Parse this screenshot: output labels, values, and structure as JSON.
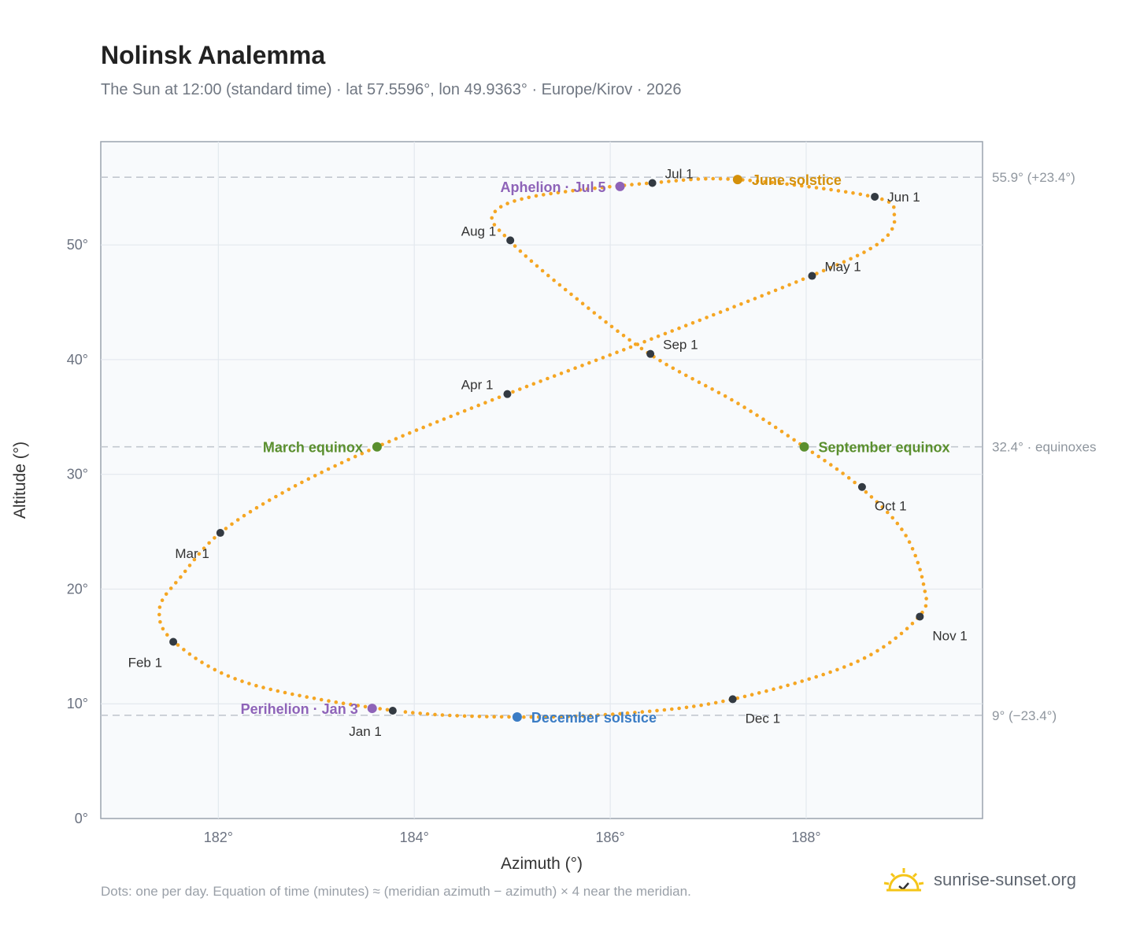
{
  "title": "Nolinsk Analemma",
  "subtitle": "The Sun at 12:00 (standard time) · lat 57.5596°, lon 49.9363° · Europe/Kirov · 2026",
  "footnote": "Dots: one per day. Equation of time (minutes) ≈ (meridian azimuth − azimuth) × 4 near the meridian.",
  "brand": {
    "text": "sunrise-sunset.org",
    "icon": "sun-logo-icon"
  },
  "colors": {
    "curve": "#f5a623",
    "month_marker": "#333a42",
    "equinox": "#5a8f2e",
    "june_solstice": "#d4900a",
    "december_solstice": "#3b7cc4",
    "apsis": "#8e63b8",
    "plot_bg": "#f8fafc",
    "grid": "#e3e8ee",
    "reference_line": "#c2c8cf"
  },
  "chart_data": {
    "type": "scatter",
    "xlabel": "Azimuth (°)",
    "ylabel": "Altitude (°)",
    "xlim": [
      180.8,
      189.8
    ],
    "ylim": [
      0,
      59
    ],
    "x_ticks": [
      182,
      184,
      186,
      188
    ],
    "x_tick_labels": [
      "182°",
      "184°",
      "186°",
      "188°"
    ],
    "y_ticks": [
      0,
      10,
      20,
      30,
      40,
      50
    ],
    "y_tick_labels": [
      "0°",
      "10°",
      "20°",
      "30°",
      "40°",
      "50°"
    ],
    "grid": true,
    "reference_lines": [
      {
        "altitude": 55.9,
        "label": "55.9° (+23.4°)"
      },
      {
        "altitude": 32.4,
        "label": "32.4° · equinoxes"
      },
      {
        "altitude": 9.0,
        "label": "9° (−23.4°)"
      }
    ],
    "curve_keypoints": [
      {
        "az": 183.8,
        "alt": 9.4
      },
      {
        "az": 182.3,
        "alt": 11.8
      },
      {
        "az": 181.55,
        "alt": 15.4
      },
      {
        "az": 181.4,
        "alt": 18.3
      },
      {
        "az": 181.62,
        "alt": 21.1
      },
      {
        "az": 182.02,
        "alt": 24.9
      },
      {
        "az": 182.7,
        "alt": 28.6
      },
      {
        "az": 183.62,
        "alt": 32.4
      },
      {
        "az": 184.95,
        "alt": 37.0
      },
      {
        "az": 186.3,
        "alt": 41.4
      },
      {
        "az": 188.05,
        "alt": 47.3
      },
      {
        "az": 188.75,
        "alt": 50.2
      },
      {
        "az": 188.9,
        "alt": 52.6
      },
      {
        "az": 188.68,
        "alt": 54.2
      },
      {
        "az": 187.3,
        "alt": 55.7
      },
      {
        "az": 186.42,
        "alt": 55.4
      },
      {
        "az": 185.2,
        "alt": 54.2
      },
      {
        "az": 184.8,
        "alt": 52.6
      },
      {
        "az": 184.97,
        "alt": 50.4
      },
      {
        "az": 185.5,
        "alt": 46.4
      },
      {
        "az": 186.4,
        "alt": 40.5
      },
      {
        "az": 187.3,
        "alt": 36.2
      },
      {
        "az": 187.98,
        "alt": 32.4
      },
      {
        "az": 188.55,
        "alt": 28.9
      },
      {
        "az": 189.0,
        "alt": 24.9
      },
      {
        "az": 189.2,
        "alt": 20.3
      },
      {
        "az": 189.15,
        "alt": 17.6
      },
      {
        "az": 188.5,
        "alt": 13.6
      },
      {
        "az": 187.25,
        "alt": 10.4
      },
      {
        "az": 186.2,
        "alt": 9.2
      },
      {
        "az": 185.05,
        "alt": 8.85
      },
      {
        "az": 183.8,
        "alt": 9.4
      }
    ],
    "month_markers": [
      {
        "label": "Jan 1",
        "az": 183.78,
        "alt": 9.4,
        "anchor": "below-left"
      },
      {
        "label": "Feb 1",
        "az": 181.54,
        "alt": 15.4,
        "anchor": "below-left"
      },
      {
        "label": "Mar 1",
        "az": 182.02,
        "alt": 24.9,
        "anchor": "below-left"
      },
      {
        "label": "Apr 1",
        "az": 184.95,
        "alt": 37.0,
        "anchor": "above-left"
      },
      {
        "label": "May 1",
        "az": 188.06,
        "alt": 47.3,
        "anchor": "above-right"
      },
      {
        "label": "Jun 1",
        "az": 188.7,
        "alt": 54.2,
        "anchor": "right"
      },
      {
        "label": "Jul 1",
        "az": 186.43,
        "alt": 55.4,
        "anchor": "above-right"
      },
      {
        "label": "Aug 1",
        "az": 184.98,
        "alt": 50.4,
        "anchor": "above-left"
      },
      {
        "label": "Sep 1",
        "az": 186.41,
        "alt": 40.5,
        "anchor": "above-right"
      },
      {
        "label": "Oct 1",
        "az": 188.57,
        "alt": 28.9,
        "anchor": "below-right"
      },
      {
        "label": "Nov 1",
        "az": 189.16,
        "alt": 17.6,
        "anchor": "below-right"
      },
      {
        "label": "Dec 1",
        "az": 187.25,
        "alt": 10.4,
        "anchor": "below-right"
      }
    ],
    "events": [
      {
        "label": "June solstice",
        "az": 187.3,
        "alt": 55.7,
        "color_key": "june_solstice",
        "side": "right"
      },
      {
        "label": "December solstice",
        "az": 185.05,
        "alt": 8.85,
        "color_key": "december_solstice",
        "side": "right"
      },
      {
        "label": "March equinox",
        "az": 183.62,
        "alt": 32.4,
        "color_key": "equinox",
        "side": "left"
      },
      {
        "label": "September equinox",
        "az": 187.98,
        "alt": 32.4,
        "color_key": "equinox",
        "side": "right"
      },
      {
        "label": "Aphelion · Jul 5",
        "az": 186.1,
        "alt": 55.1,
        "color_key": "apsis",
        "side": "left"
      },
      {
        "label": "Perihelion · Jan 3",
        "az": 183.57,
        "alt": 9.6,
        "color_key": "apsis",
        "side": "left"
      }
    ]
  }
}
